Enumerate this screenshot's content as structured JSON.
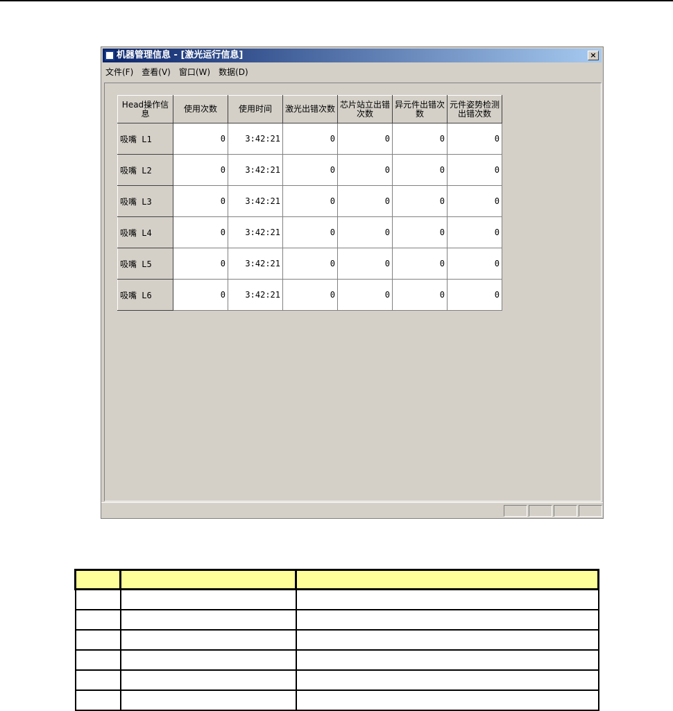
{
  "window": {
    "title": "机器管理信息 - [激光运行信息]",
    "close": "×"
  },
  "menu": [
    "文件(F)",
    "查看(V)",
    "窗口(W)",
    "数据(D)"
  ],
  "table": {
    "headers": [
      "Head操作信息",
      "使用次数",
      "使用时间",
      "激光出错次数",
      "芯片站立出错次数",
      "异元件出错次数",
      "元件姿势检测出错次数"
    ],
    "rows": [
      [
        "吸嘴 L1",
        "0",
        "3:42:21",
        "0",
        "0",
        "0",
        "0"
      ],
      [
        "吸嘴 L2",
        "0",
        "3:42:21",
        "0",
        "0",
        "0",
        "0"
      ],
      [
        "吸嘴 L3",
        "0",
        "3:42:21",
        "0",
        "0",
        "0",
        "0"
      ],
      [
        "吸嘴 L4",
        "0",
        "3:42:21",
        "0",
        "0",
        "0",
        "0"
      ],
      [
        "吸嘴 L5",
        "0",
        "3:42:21",
        "0",
        "0",
        "0",
        "0"
      ],
      [
        "吸嘴 L6",
        "0",
        "3:42:21",
        "0",
        "0",
        "0",
        "0"
      ]
    ]
  },
  "legend_header_color": "#ffff99"
}
